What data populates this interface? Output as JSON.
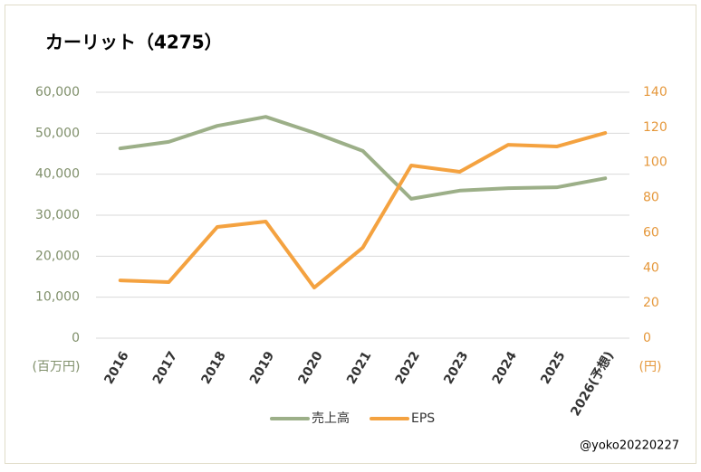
{
  "chart_data": {
    "type": "line",
    "title": "カーリット（4275）",
    "categories": [
      "2016",
      "2017",
      "2018",
      "2019",
      "2020",
      "2021",
      "2022",
      "2023",
      "2024",
      "2025",
      "2026(予想)"
    ],
    "series": [
      {
        "name": "売上高",
        "color": "#9caf88",
        "values": [
          46300,
          47900,
          51800,
          54000,
          50100,
          45700,
          34000,
          36000,
          36600,
          36800,
          39000
        ]
      },
      {
        "name": "EPS",
        "color": "#f4a240",
        "axis": "y2",
        "values": [
          32.9,
          31.9,
          63.3,
          66.4,
          28.8,
          51.5,
          98.3,
          94.7,
          110.1,
          109.1,
          116.8
        ]
      }
    ],
    "y_label": "(百万円)",
    "y2_label": "(円)",
    "ylim": [
      0,
      60000
    ],
    "yticks": [
      0,
      {
        "value": 10000,
        "label": "10,000"
      },
      {
        "value": 20000,
        "label": "20,000"
      },
      {
        "value": 30000,
        "label": "30,000"
      },
      {
        "value": 40000,
        "label": "40,000"
      },
      {
        "value": 50000,
        "label": "50,000"
      },
      {
        "value": 60000,
        "label": "60,000"
      }
    ],
    "y2lim": [
      0,
      140
    ],
    "y2ticks": [
      0,
      20,
      40,
      60,
      80,
      100,
      120,
      140
    ],
    "grid": true,
    "legend": "bottom",
    "annotation": "@yoko20220227"
  }
}
